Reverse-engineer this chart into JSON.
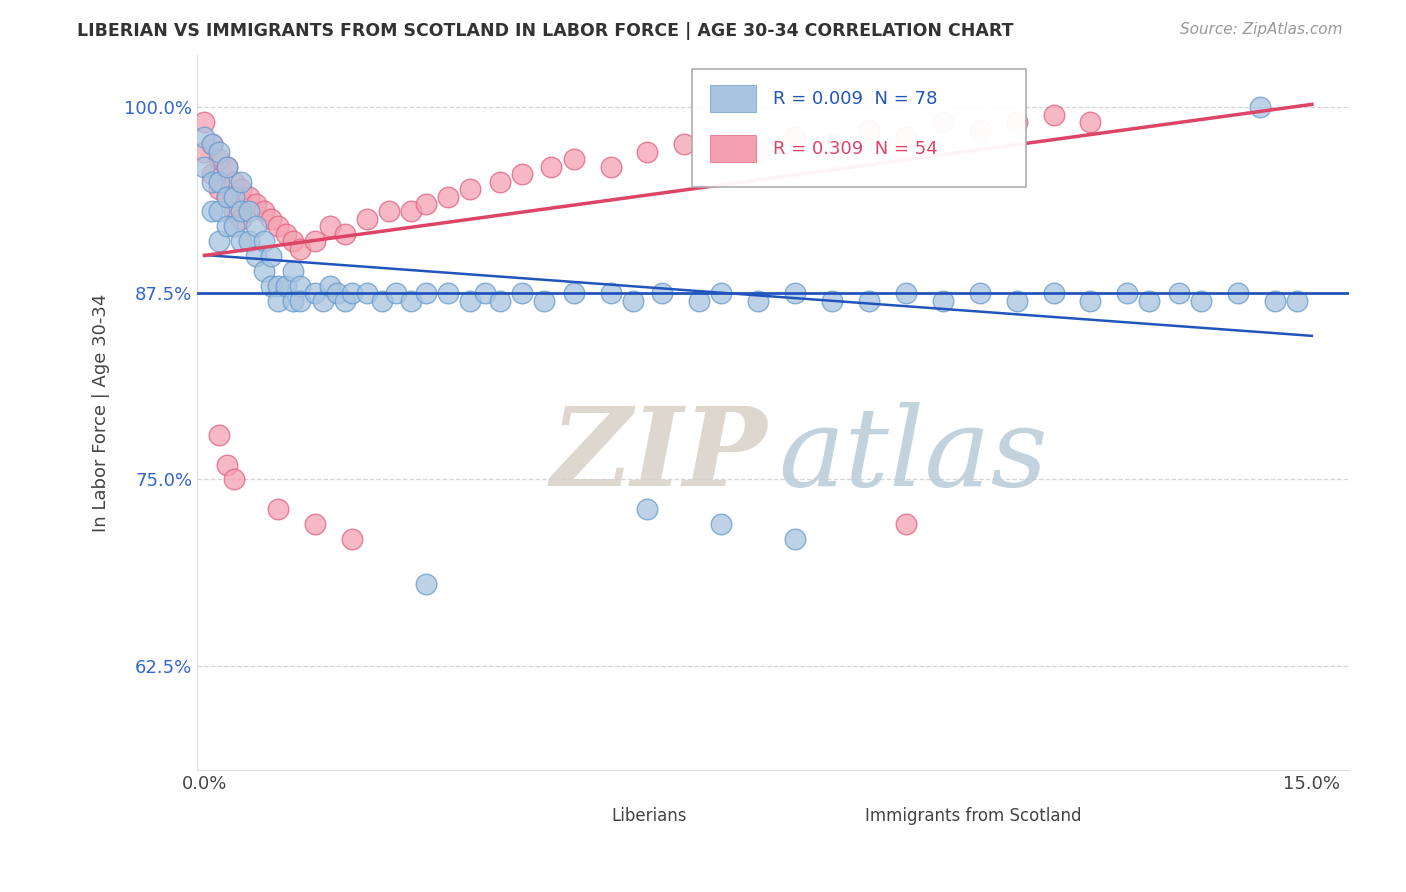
{
  "title": "LIBERIAN VS IMMIGRANTS FROM SCOTLAND IN LABOR FORCE | AGE 30-34 CORRELATION CHART",
  "source_text": "Source: ZipAtlas.com",
  "ylabel": "In Labor Force | Age 30-34",
  "xlim": [
    -0.001,
    0.155
  ],
  "ylim": [
    0.555,
    1.035
  ],
  "x_ticks": [
    0.0,
    0.05,
    0.1,
    0.15
  ],
  "x_tick_labels": [
    "0.0%",
    "",
    "",
    "15.0%"
  ],
  "y_ticks": [
    0.625,
    0.75,
    0.875,
    1.0
  ],
  "y_tick_labels": [
    "62.5%",
    "75.0%",
    "87.5%",
    "100.0%"
  ],
  "liberian_R": 0.009,
  "liberian_N": 78,
  "scotland_R": 0.309,
  "scotland_N": 54,
  "blue_color": "#a8c4e0",
  "blue_edge_color": "#6699cc",
  "pink_color": "#f4a0b0",
  "pink_edge_color": "#e06080",
  "blue_line_color": "#2255bb",
  "pink_line_color": "#dd4466",
  "hline_color": "#2255bb",
  "hline_y": 0.875,
  "watermark_zip_color": "#d8d0c8",
  "watermark_atlas_color": "#b8ccd8",
  "legend_R1": "R = 0.009",
  "legend_N1": "N = 78",
  "legend_R2": "R = 0.309",
  "legend_N2": "N = 54"
}
